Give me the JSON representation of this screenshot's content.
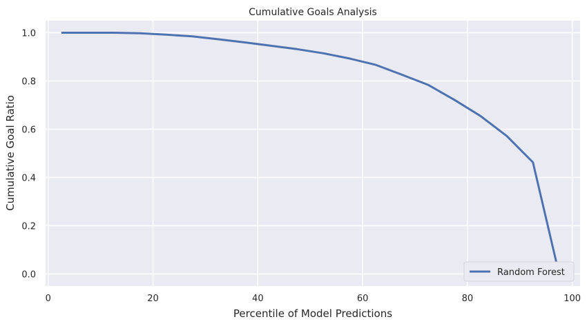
{
  "chart_data": {
    "type": "line",
    "title": "Cumulative Goals Analysis",
    "xlabel": "Percentile of Model Predictions",
    "ylabel": "Cumulative Goal Ratio",
    "xlim": [
      -0.5,
      101.5
    ],
    "ylim": [
      -0.05,
      1.05
    ],
    "xticks": [
      0,
      20,
      40,
      60,
      80,
      100
    ],
    "yticks": [
      0.0,
      0.2,
      0.4,
      0.6,
      0.8,
      1.0
    ],
    "xtick_labels": [
      "0",
      "20",
      "40",
      "60",
      "80",
      "100"
    ],
    "ytick_labels": [
      "0.0",
      "0.2",
      "0.4",
      "0.6",
      "0.8",
      "1.0"
    ],
    "grid": true,
    "legend_position": "bottom-right",
    "background_color": "#eaeaf2",
    "grid_color": "#ffffff",
    "series": [
      {
        "name": "Random Forest",
        "color": "#4c72b0",
        "x": [
          2.5,
          7.5,
          12.5,
          17.5,
          22.5,
          27.5,
          32.5,
          37.5,
          42.5,
          47.5,
          52.5,
          57.5,
          62.5,
          67.5,
          72.5,
          77.5,
          82.5,
          87.5,
          92.5,
          97.5
        ],
        "values": [
          1.0,
          1.0,
          1.0,
          0.998,
          0.992,
          0.985,
          0.973,
          0.96,
          0.946,
          0.932,
          0.915,
          0.893,
          0.867,
          0.826,
          0.784,
          0.722,
          0.655,
          0.572,
          0.463,
          0.0
        ]
      }
    ]
  }
}
